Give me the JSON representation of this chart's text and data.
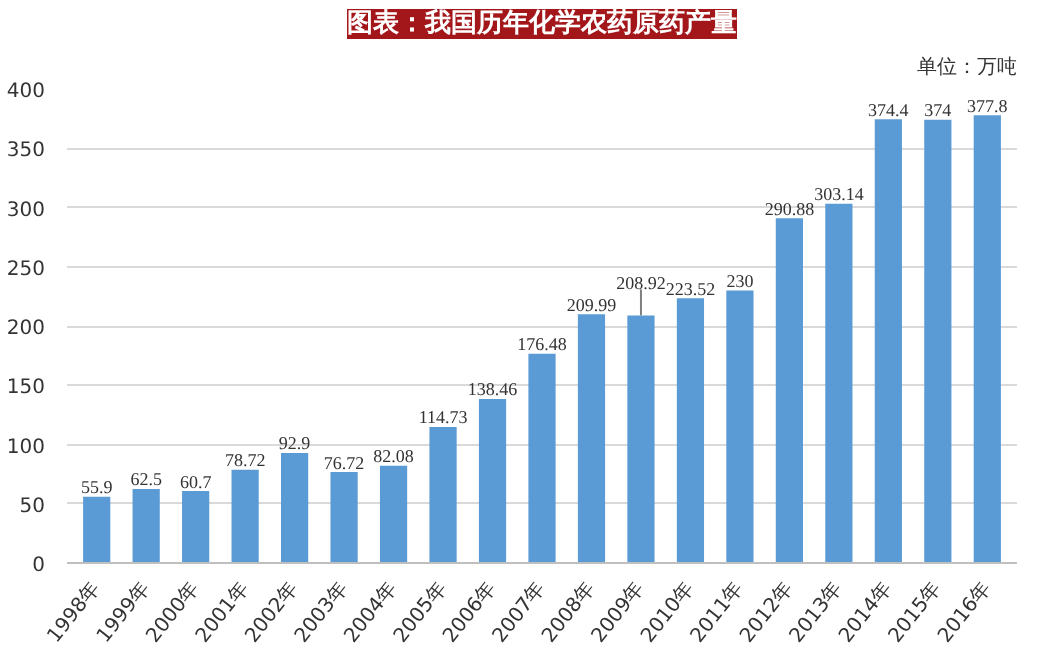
{
  "chart_data": {
    "type": "bar",
    "title": "图表：我国历年化学农药原药产量",
    "subtitle": "单位：万吨",
    "categories": [
      "1998年",
      "1999年",
      "2000年",
      "2001年",
      "2002年",
      "2003年",
      "2004年",
      "2005年",
      "2006年",
      "2007年",
      "2008年",
      "2009年",
      "2010年",
      "2011年",
      "2012年",
      "2013年",
      "2014年",
      "2015年",
      "2016年"
    ],
    "values": [
      55.9,
      62.5,
      60.7,
      78.72,
      92.9,
      76.72,
      82.08,
      114.73,
      138.46,
      176.48,
      209.99,
      208.92,
      223.52,
      230,
      290.88,
      303.14,
      374.4,
      374,
      377.8
    ],
    "color": "#5b9bd5",
    "ylim": [
      0,
      400
    ],
    "yticks": [
      0,
      50,
      100,
      150,
      200,
      250,
      300,
      350,
      400
    ],
    "grid": "y",
    "data_labels": true
  }
}
